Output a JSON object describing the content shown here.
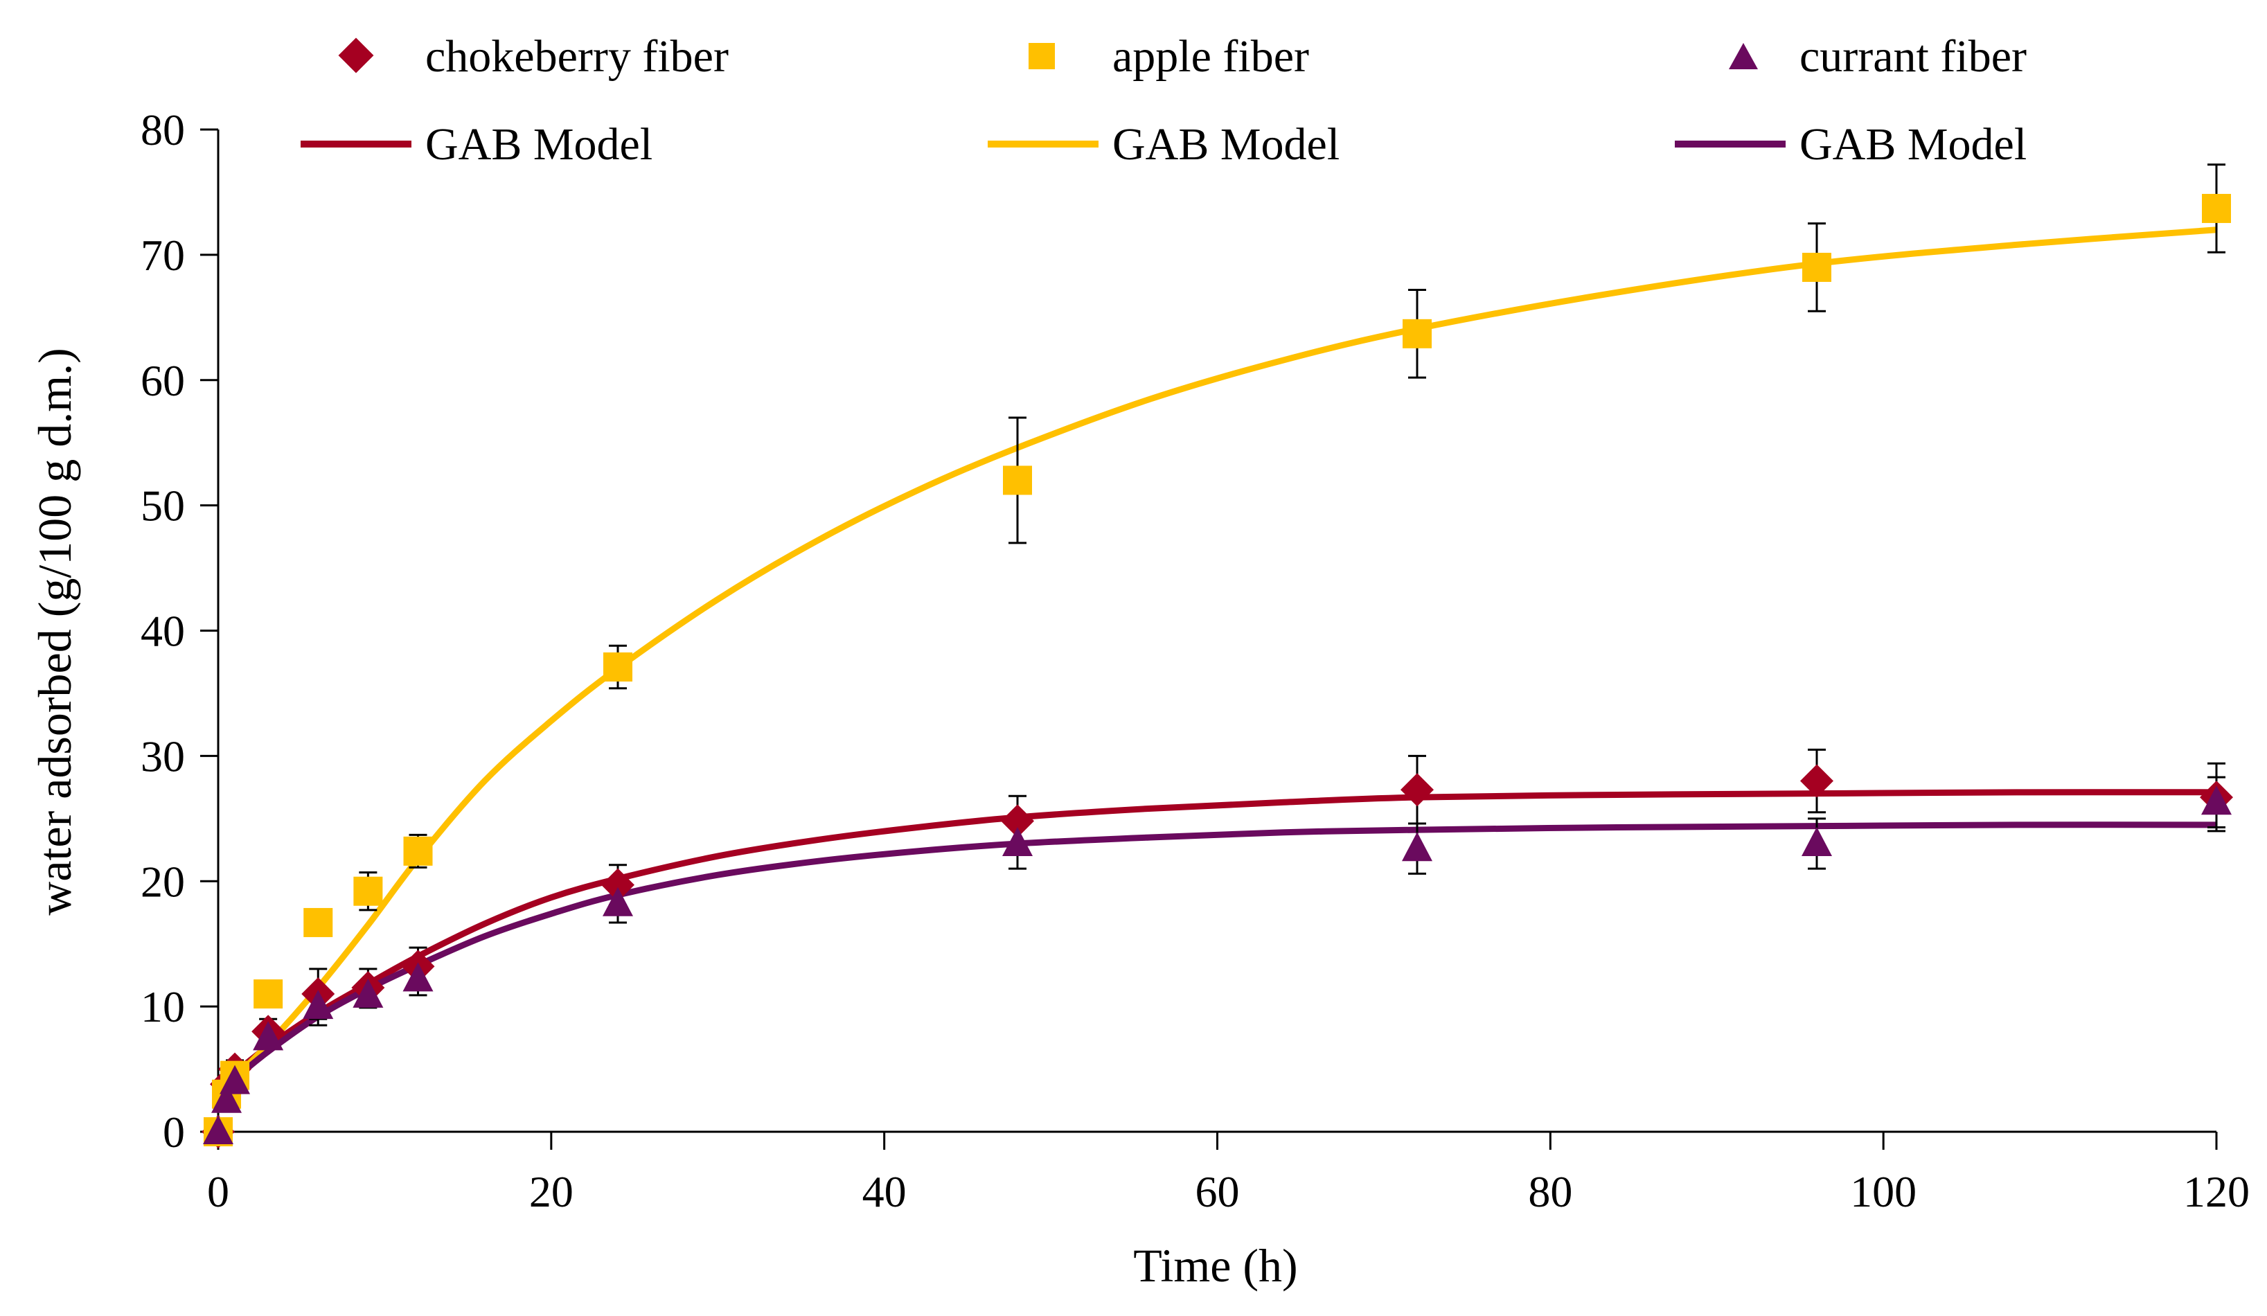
{
  "chart_data": {
    "type": "scatter",
    "title": "",
    "xlabel": "Time (h)",
    "ylabel": "water adsorbed (g/100 g d.m.)",
    "xlim": [
      0,
      120
    ],
    "ylim": [
      0,
      80
    ],
    "xticks": [
      0,
      20,
      40,
      60,
      80,
      100,
      120
    ],
    "yticks": [
      0,
      10,
      20,
      30,
      40,
      50,
      60,
      70,
      80
    ],
    "grid": false,
    "legend_position": "top",
    "colors": {
      "chokeberry": "#a50021",
      "apple": "#ffc000",
      "currant": "#6a0a5e",
      "axis": "#000000"
    },
    "series": [
      {
        "name": "chokeberry fiber",
        "marker": "diamond",
        "color": "#a50021",
        "x": [
          0,
          0.5,
          1,
          3,
          6,
          9,
          12,
          24,
          48,
          72,
          96,
          120
        ],
        "y": [
          0,
          3.8,
          5.0,
          8.0,
          11.0,
          11.5,
          13.2,
          19.7,
          24.8,
          27.3,
          28.0,
          26.7
        ],
        "err": [
          0,
          0.6,
          0.7,
          1.0,
          2.0,
          1.5,
          1.5,
          1.6,
          2.0,
          2.7,
          2.5,
          2.7
        ]
      },
      {
        "name": "apple fiber",
        "marker": "square",
        "color": "#ffc000",
        "x": [
          0,
          0.5,
          1,
          3,
          6,
          9,
          12,
          24,
          48,
          72,
          96,
          120
        ],
        "y": [
          0,
          3.0,
          4.5,
          11.0,
          16.7,
          19.2,
          22.4,
          37.1,
          52.0,
          63.7,
          69.0,
          73.7
        ],
        "err": [
          0,
          0.5,
          0.6,
          0.8,
          1.0,
          1.5,
          1.3,
          1.7,
          5.0,
          3.5,
          3.5,
          3.5
        ]
      },
      {
        "name": "currant fiber",
        "marker": "triangle",
        "color": "#6a0a5e",
        "x": [
          0,
          0.5,
          1,
          3,
          6,
          9,
          12,
          24,
          48,
          72,
          96,
          120
        ],
        "y": [
          0,
          2.5,
          4.0,
          7.5,
          10.0,
          10.9,
          12.2,
          18.2,
          23.0,
          22.6,
          23.0,
          26.3
        ],
        "err": [
          0,
          0.5,
          0.6,
          0.8,
          1.5,
          1.0,
          1.3,
          1.5,
          2.0,
          2.0,
          2.0,
          2.0
        ]
      }
    ],
    "model_lines": [
      {
        "name": "GAB Model",
        "color": "#a50021",
        "x": [
          0,
          1,
          3,
          6,
          9,
          12,
          16,
          20,
          24,
          30,
          36,
          42,
          48,
          56,
          64,
          72,
          84,
          96,
          108,
          120
        ],
        "y": [
          3.5,
          4.7,
          6.8,
          9.5,
          11.8,
          14.0,
          16.6,
          18.7,
          20.2,
          22.0,
          23.3,
          24.3,
          25.1,
          25.8,
          26.3,
          26.7,
          26.9,
          27.0,
          27.1,
          27.1
        ]
      },
      {
        "name": "GAB Model",
        "color": "#ffc000",
        "x": [
          0,
          3,
          6,
          9,
          12,
          16,
          20,
          24,
          30,
          36,
          42,
          48,
          56,
          64,
          72,
          84,
          96,
          108,
          120
        ],
        "y": [
          3.0,
          7.0,
          11.5,
          16.5,
          21.8,
          28.0,
          32.8,
          37.0,
          42.5,
          47.2,
          51.2,
          54.6,
          58.5,
          61.6,
          64.1,
          67.0,
          69.3,
          70.8,
          72.0
        ]
      },
      {
        "name": "GAB Model",
        "color": "#6a0a5e",
        "x": [
          0,
          1,
          3,
          6,
          9,
          12,
          16,
          20,
          24,
          30,
          36,
          42,
          48,
          56,
          64,
          72,
          84,
          96,
          108,
          120
        ],
        "y": [
          2.8,
          4.2,
          6.4,
          9.2,
          11.4,
          13.3,
          15.6,
          17.4,
          18.9,
          20.5,
          21.6,
          22.4,
          23.0,
          23.5,
          23.9,
          24.1,
          24.3,
          24.4,
          24.5,
          24.5
        ]
      }
    ],
    "legend": {
      "row1": [
        "chokeberry fiber",
        "apple fiber",
        "currant fiber"
      ],
      "row2": [
        "GAB Model",
        "GAB Model",
        "GAB Model"
      ]
    }
  }
}
